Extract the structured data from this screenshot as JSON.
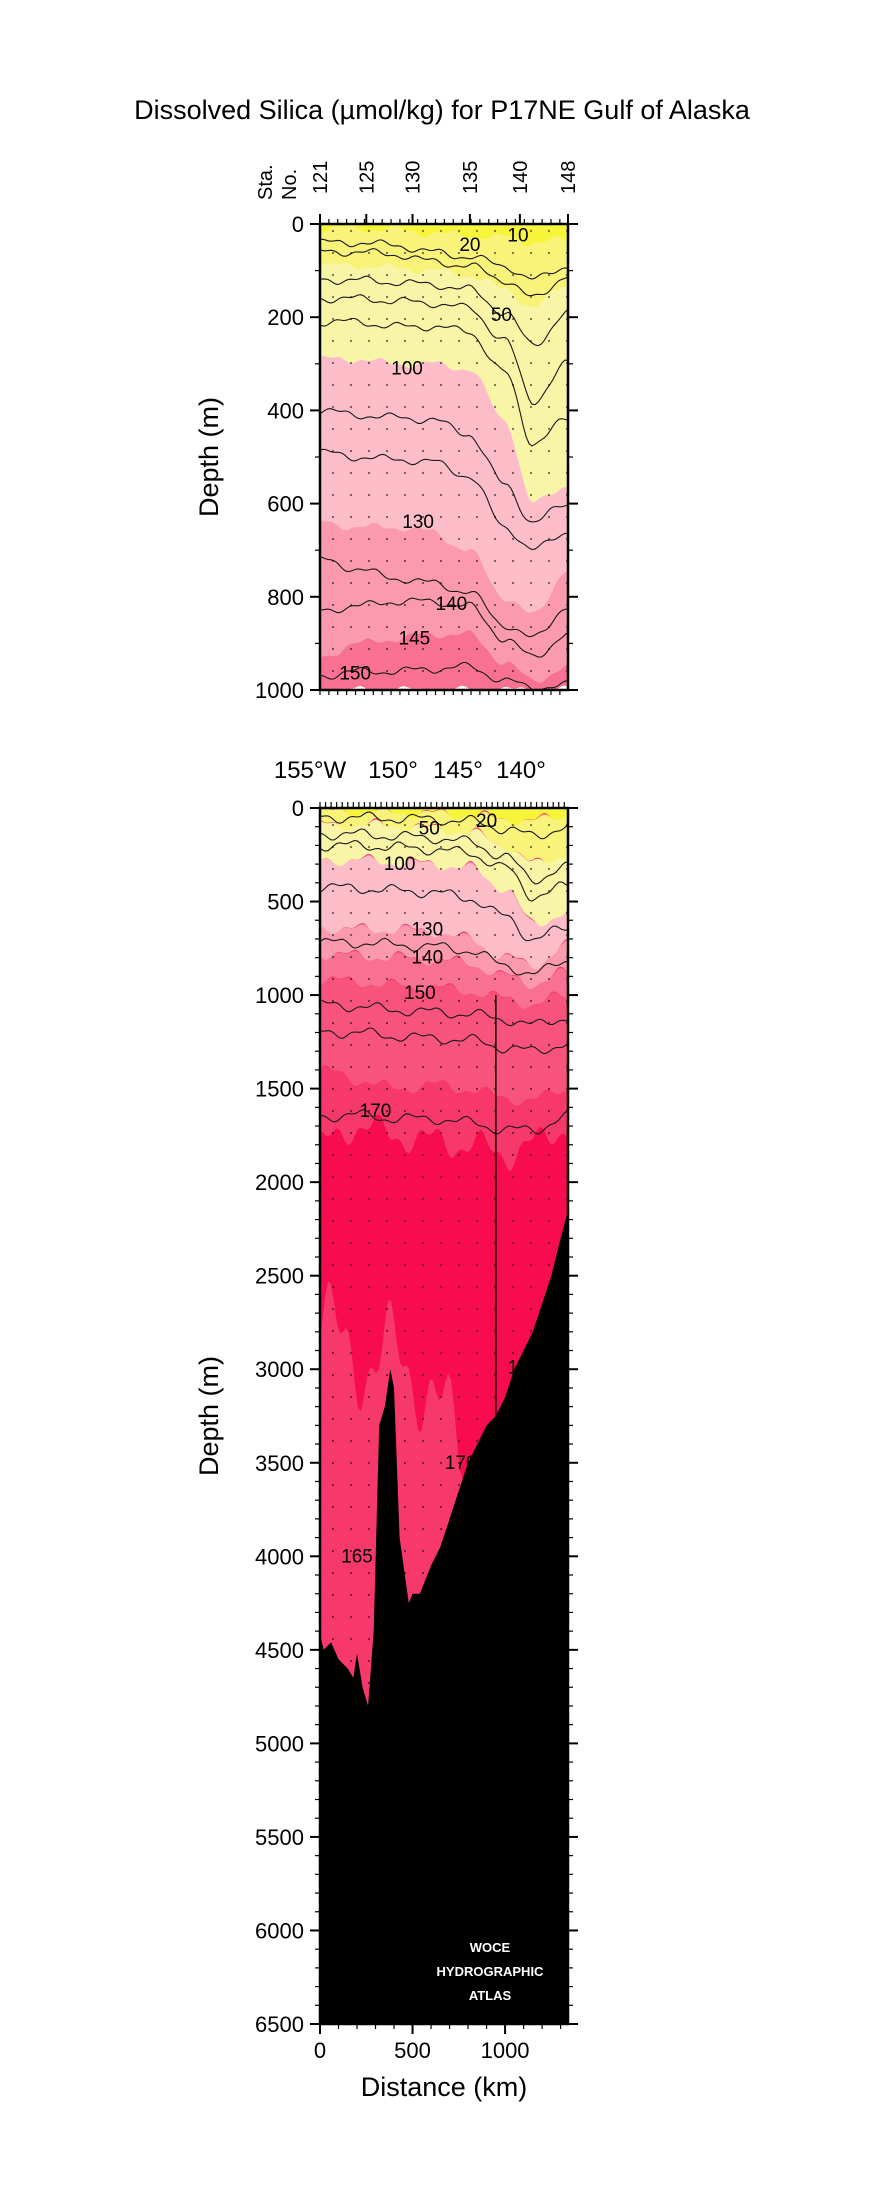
{
  "title": "Dissolved Silica (µmol/kg) for P17NE Gulf of Alaska",
  "colors": {
    "band_lt20": "#f7f43c",
    "band_20_50": "#f9f37a",
    "band_50_100": "#f8f6a6",
    "band_100_130": "#fcbdc8",
    "band_130_140": "#fb9aae",
    "band_140_150": "#f87192",
    "band_150_165": "#f8537c",
    "band_165_170": "#f7386b",
    "band_gt170": "#f60c4f",
    "bottom": "#000000"
  },
  "chart_data": [
    {
      "type": "heatmap",
      "name": "upper panel (0-1000 m)",
      "ylabel": "Depth (m)",
      "ylim": [
        1000,
        0
      ],
      "yticks": [
        "0",
        "200",
        "400",
        "600",
        "800",
        "1000"
      ],
      "station_header": [
        "Sta.",
        "No."
      ],
      "station_labels": [
        "121",
        "125",
        "130",
        "135",
        "140",
        "148"
      ],
      "station_positions_km": [
        0,
        250,
        500,
        810,
        1080,
        1340
      ],
      "xlim_km": [
        0,
        1340
      ],
      "contour_labels": [
        {
          "text": "10",
          "x_km": 1070,
          "depth_m": 25
        },
        {
          "text": "20",
          "x_km": 810,
          "depth_m": 45
        },
        {
          "text": "50",
          "x_km": 980,
          "depth_m": 195
        },
        {
          "text": "100",
          "x_km": 470,
          "depth_m": 310
        },
        {
          "text": "130",
          "x_km": 530,
          "depth_m": 640
        },
        {
          "text": "140",
          "x_km": 710,
          "depth_m": 815
        },
        {
          "text": "145",
          "x_km": 510,
          "depth_m": 890
        },
        {
          "text": "150",
          "x_km": 190,
          "depth_m": 965
        }
      ],
      "bands": [
        {
          "range": "<20",
          "top": [
            0,
            0,
            0,
            0,
            0,
            0,
            0,
            0
          ],
          "bottom": [
            10,
            10,
            12,
            20,
            25,
            30,
            40,
            35
          ]
        },
        {
          "range": "20-50",
          "top": [
            10,
            10,
            12,
            20,
            25,
            30,
            40,
            35
          ],
          "bottom": [
            90,
            90,
            95,
            100,
            110,
            140,
            180,
            130
          ]
        },
        {
          "range": "50-100",
          "top": [
            90,
            90,
            95,
            100,
            110,
            140,
            180,
            130
          ],
          "bottom": [
            290,
            290,
            300,
            300,
            310,
            420,
            600,
            560
          ]
        },
        {
          "range": "100-130",
          "top": [
            290,
            290,
            300,
            300,
            310,
            420,
            600,
            560
          ],
          "bottom": [
            640,
            650,
            650,
            660,
            700,
            800,
            840,
            740
          ]
        },
        {
          "range": "130-145",
          "top": [
            640,
            650,
            650,
            660,
            700,
            800,
            840,
            740
          ],
          "bottom": [
            930,
            900,
            890,
            880,
            880,
            940,
            980,
            950
          ]
        },
        {
          "range": ">145",
          "top": [
            930,
            900,
            890,
            880,
            880,
            940,
            980,
            950
          ],
          "bottom": [
            1000,
            1000,
            1000,
            1000,
            1000,
            1000,
            1000,
            1000
          ]
        }
      ],
      "band_x_km": [
        0,
        200,
        400,
        600,
        800,
        1000,
        1150,
        1340
      ]
    },
    {
      "type": "heatmap",
      "name": "lower panel (0-6500 m)",
      "xlabel": "Distance (km)",
      "ylabel": "Depth (m)",
      "xlim_km": [
        0,
        1340
      ],
      "ylim": [
        6500,
        0
      ],
      "xticks": [
        "0",
        "500",
        "1000"
      ],
      "yticks": [
        "0",
        "500",
        "1000",
        "1500",
        "2000",
        "2500",
        "3000",
        "3500",
        "4000",
        "4500",
        "5000",
        "5500",
        "6000",
        "6500"
      ],
      "longitude_labels": [
        "155°W",
        "150°",
        "145°",
        "140°"
      ],
      "contour_labels": [
        {
          "text": "20",
          "x_km": 900,
          "depth_m": 70
        },
        {
          "text": "50",
          "x_km": 590,
          "depth_m": 110
        },
        {
          "text": "100",
          "x_km": 430,
          "depth_m": 300
        },
        {
          "text": "130",
          "x_km": 580,
          "depth_m": 650
        },
        {
          "text": "140",
          "x_km": 580,
          "depth_m": 800
        },
        {
          "text": "150",
          "x_km": 540,
          "depth_m": 990
        },
        {
          "text": "170",
          "x_km": 300,
          "depth_m": 1620
        },
        {
          "text": "180",
          "x_km": 1100,
          "depth_m": 2990
        },
        {
          "text": "170",
          "x_km": 760,
          "depth_m": 3500
        },
        {
          "text": "165",
          "x_km": 200,
          "depth_m": 4000
        }
      ],
      "bottom_profile_km": [
        0,
        20,
        60,
        100,
        150,
        180,
        200,
        230,
        260,
        290,
        320,
        350,
        380,
        400,
        430,
        480,
        500,
        540,
        560,
        580,
        600,
        650,
        700,
        750,
        800,
        850,
        900,
        950,
        1000,
        1050,
        1100,
        1150,
        1200,
        1250,
        1300,
        1340
      ],
      "bottom_profile_depth_m": [
        4420,
        4500,
        4460,
        4550,
        4600,
        4650,
        4520,
        4700,
        4800,
        4400,
        3300,
        3200,
        3000,
        3100,
        3900,
        4250,
        4200,
        4200,
        4150,
        4100,
        4050,
        3950,
        3800,
        3650,
        3500,
        3400,
        3300,
        3250,
        3150,
        3000,
        2900,
        2800,
        2650,
        2500,
        2300,
        2150
      ],
      "watermark": [
        "WOCE",
        "HYDROGRAPHIC",
        "ATLAS"
      ]
    }
  ]
}
